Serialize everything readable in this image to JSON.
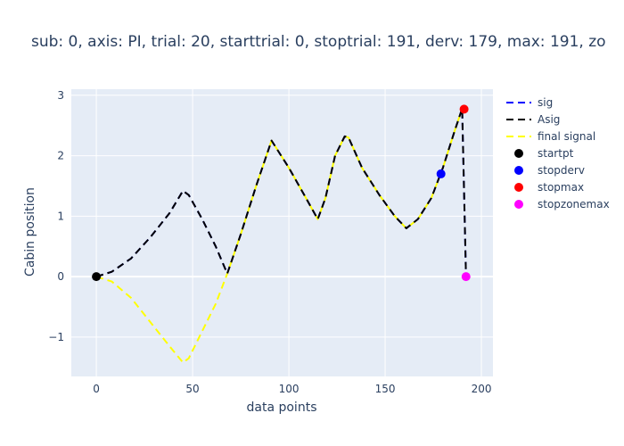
{
  "chart_data": {
    "type": "line",
    "title": "sub: 0, axis: PI, trial: 20, starttrial: 0, stoptrial: 191, derv: 179, max: 191, zo",
    "xlabel": "data points",
    "ylabel": "Cabin position",
    "xlim": [
      -13,
      206
    ],
    "ylim": [
      -1.65,
      3.1
    ],
    "xticks": [
      0,
      50,
      100,
      150,
      200
    ],
    "yticks": [
      -1,
      0,
      1,
      2,
      3
    ],
    "ytick_labels": [
      "−1",
      "0",
      "1",
      "2",
      "3"
    ],
    "grid": true,
    "legend_position": "right",
    "series": [
      {
        "name": "sig",
        "style": "dash",
        "color": "#0000ff",
        "x": [
          0,
          8,
          18,
          28,
          38,
          45,
          48,
          55,
          62,
          68,
          75,
          83,
          91,
          100,
          108,
          115,
          119,
          124,
          129,
          131,
          138,
          147,
          155,
          161,
          167,
          174,
          180,
          186,
          190,
          191,
          192
        ],
        "y": [
          0,
          0.08,
          0.3,
          0.65,
          1.05,
          1.42,
          1.35,
          0.95,
          0.5,
          0.05,
          0.7,
          1.5,
          2.25,
          1.8,
          1.35,
          0.95,
          1.3,
          2.0,
          2.32,
          2.3,
          1.8,
          1.35,
          1.0,
          0.8,
          0.95,
          1.3,
          1.8,
          2.4,
          2.78,
          1.4,
          0
        ]
      },
      {
        "name": "Asig",
        "style": "dash",
        "color": "#000000",
        "x": [
          0,
          8,
          18,
          28,
          38,
          45,
          48,
          55,
          62,
          68,
          75,
          83,
          91,
          100,
          108,
          115,
          119,
          124,
          129,
          131,
          138,
          147,
          155,
          161,
          167,
          174,
          180,
          186,
          190,
          191,
          192
        ],
        "y": [
          0,
          0.08,
          0.3,
          0.65,
          1.05,
          1.42,
          1.35,
          0.95,
          0.5,
          0.05,
          0.7,
          1.5,
          2.25,
          1.8,
          1.35,
          0.95,
          1.3,
          2.0,
          2.32,
          2.3,
          1.8,
          1.35,
          1.0,
          0.8,
          0.95,
          1.3,
          1.8,
          2.4,
          2.78,
          1.4,
          0
        ]
      },
      {
        "name": "final signal",
        "style": "dash",
        "color": "#ffff00",
        "x": [
          0,
          8,
          18,
          28,
          38,
          45,
          48,
          55,
          62,
          68,
          75,
          83,
          91,
          100,
          108,
          115,
          119,
          124,
          129,
          131,
          138,
          147,
          155,
          161,
          167,
          174,
          180,
          186,
          190
        ],
        "y": [
          0,
          -0.08,
          -0.35,
          -0.75,
          -1.15,
          -1.42,
          -1.35,
          -0.9,
          -0.45,
          0.05,
          0.7,
          1.5,
          2.25,
          1.8,
          1.35,
          0.95,
          1.3,
          2.0,
          2.32,
          2.3,
          1.8,
          1.35,
          1.0,
          0.8,
          0.95,
          1.3,
          1.8,
          2.4,
          2.78
        ]
      }
    ],
    "markers": [
      {
        "name": "startpt",
        "color": "#000000",
        "x": 0,
        "y": 0
      },
      {
        "name": "stopderv",
        "color": "#0000ff",
        "x": 179,
        "y": 1.7
      },
      {
        "name": "stopmax",
        "color": "#ff0000",
        "x": 191,
        "y": 2.77
      },
      {
        "name": "stopzonemax",
        "color": "#ff00ff",
        "x": 192,
        "y": 0
      }
    ]
  }
}
